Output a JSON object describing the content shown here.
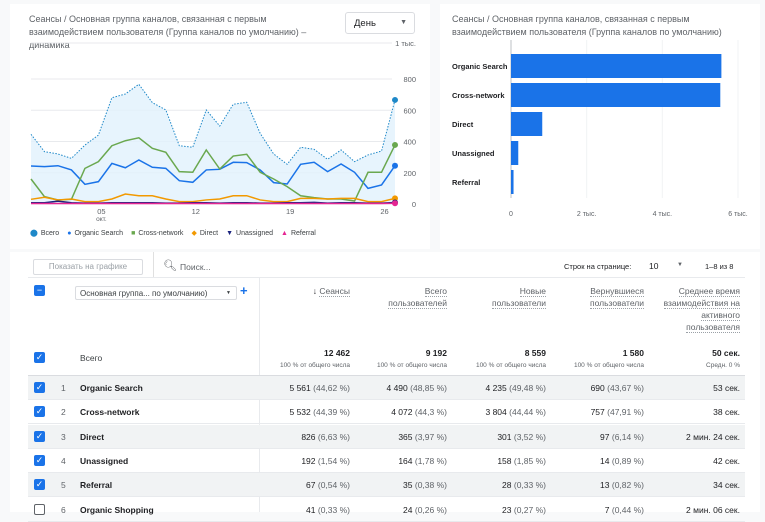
{
  "line_card": {
    "title": "Сеансы / Основная группа каналов, связанная с первым взаимодействием пользователя (Группа каналов по умолчанию) – динамика",
    "period": "День",
    "y_ticks": [
      "1 тыс.",
      "800",
      "600",
      "400",
      "200",
      "0"
    ],
    "x_ticks": [
      "05",
      "12",
      "19",
      "26"
    ],
    "x_sub": "окт.",
    "legend": [
      {
        "name": "Всего",
        "color": "#1e88c8",
        "icon": "pin-icon"
      },
      {
        "name": "Organic Search",
        "color": "#1a73e8",
        "icon": "circle-icon"
      },
      {
        "name": "Cross-network",
        "color": "#6aa84f",
        "icon": "square-icon"
      },
      {
        "name": "Direct",
        "color": "#f29900",
        "icon": "diamond-icon"
      },
      {
        "name": "Unassigned",
        "color": "#1a237e",
        "icon": "triangle-down-icon"
      },
      {
        "name": "Referral",
        "color": "#e52592",
        "icon": "triangle-icon"
      }
    ]
  },
  "chart_data": [
    {
      "type": "line",
      "title": "Сеансы – динамика",
      "x": [
        0,
        1,
        2,
        3,
        4,
        5,
        6,
        7,
        8,
        9,
        10,
        11,
        12,
        13,
        14,
        15,
        16,
        17,
        18,
        19,
        20,
        21,
        22,
        23,
        24,
        25,
        26,
        27
      ],
      "ylim": [
        0,
        1000
      ],
      "series": [
        {
          "name": "Всего",
          "values": [
            446,
            335,
            320,
            292,
            377,
            441,
            680,
            704,
            766,
            649,
            602,
            373,
            363,
            602,
            499,
            638,
            651,
            452,
            320,
            254,
            363,
            350,
            286,
            346,
            271,
            314,
            339,
            666
          ]
        },
        {
          "name": "Organic Search",
          "values": [
            243,
            239,
            245,
            218,
            126,
            143,
            260,
            232,
            282,
            235,
            228,
            149,
            139,
            218,
            222,
            267,
            265,
            218,
            137,
            128,
            254,
            267,
            207,
            256,
            203,
            100,
            122,
            245
          ]
        },
        {
          "name": "Cross-network",
          "values": [
            160,
            47,
            26,
            30,
            228,
            271,
            373,
            405,
            424,
            356,
            331,
            207,
            203,
            346,
            224,
            307,
            318,
            203,
            160,
            111,
            53,
            41,
            32,
            32,
            19,
            203,
            203,
            378
          ]
        },
        {
          "name": "Direct",
          "values": [
            30,
            43,
            26,
            32,
            15,
            15,
            32,
            64,
            53,
            53,
            32,
            15,
            15,
            26,
            32,
            53,
            53,
            26,
            15,
            15,
            36,
            36,
            32,
            36,
            36,
            15,
            15,
            36
          ]
        },
        {
          "name": "Unassigned",
          "values": [
            8,
            8,
            18,
            8,
            6,
            6,
            8,
            8,
            8,
            8,
            6,
            6,
            8,
            8,
            6,
            8,
            8,
            6,
            6,
            8,
            8,
            10,
            6,
            8,
            8,
            6,
            6,
            10
          ]
        },
        {
          "name": "Referral",
          "values": [
            3,
            3,
            3,
            3,
            3,
            3,
            3,
            3,
            3,
            3,
            3,
            3,
            3,
            3,
            3,
            3,
            3,
            3,
            3,
            3,
            3,
            3,
            3,
            3,
            3,
            3,
            3,
            5
          ]
        }
      ]
    },
    {
      "type": "bar",
      "title": "Сеансы / Основная группа каналов, связанная с первым взаимодействием пользователя (Группа каналов по умолчанию)",
      "categories": [
        "Organic Search",
        "Cross-network",
        "Direct",
        "Unassigned",
        "Referral"
      ],
      "values": [
        5561,
        5532,
        826,
        192,
        67
      ],
      "xlim": [
        0,
        6000
      ],
      "x_ticks": [
        "0",
        "2 тыс.",
        "4 тыс.",
        "6 тыс."
      ]
    }
  ],
  "toolbar": {
    "show_chart": "Показать на графике",
    "search_placeholder": "Поиск...",
    "rows_label": "Строк на странице:",
    "rows_value": "10",
    "range": "1–8 из 8"
  },
  "table": {
    "dimension": "Основная группа... по умолчанию)",
    "headers": [
      "Сеансы",
      "Всего пользователей",
      "Новые пользователи",
      "Вернувшиеся пользователи",
      "Среднее время взаимодействия на активного пользователя"
    ],
    "total": {
      "label": "Всего",
      "values": [
        "12 462",
        "9 192",
        "8 559",
        "1 580",
        "50 сек."
      ],
      "subs": [
        "100 % от общего числа",
        "100 % от общего числа",
        "100 % от общего числа",
        "100 % от общего числа",
        "Средн. 0 %"
      ]
    },
    "rows": [
      {
        "n": "1",
        "name": "Organic Search",
        "checked": true,
        "v": [
          "5 561",
          "4 490",
          "4 235",
          "690",
          "53 сек."
        ],
        "p": [
          "(44,62 %)",
          "(48,85 %)",
          "(49,48 %)",
          "(43,67 %)",
          ""
        ]
      },
      {
        "n": "2",
        "name": "Cross-network",
        "checked": true,
        "v": [
          "5 532",
          "4 072",
          "3 804",
          "757",
          "38 сек."
        ],
        "p": [
          "(44,39 %)",
          "(44,3 %)",
          "(44,44 %)",
          "(47,91 %)",
          ""
        ]
      },
      {
        "n": "3",
        "name": "Direct",
        "checked": true,
        "v": [
          "826",
          "365",
          "301",
          "97",
          "2 мин. 24 сек."
        ],
        "p": [
          "(6,63 %)",
          "(3,97 %)",
          "(3,52 %)",
          "(6,14 %)",
          ""
        ]
      },
      {
        "n": "4",
        "name": "Unassigned",
        "checked": true,
        "v": [
          "192",
          "164",
          "158",
          "14",
          "42 сек."
        ],
        "p": [
          "(1,54 %)",
          "(1,78 %)",
          "(1,85 %)",
          "(0,89 %)",
          ""
        ]
      },
      {
        "n": "5",
        "name": "Referral",
        "checked": true,
        "v": [
          "67",
          "35",
          "28",
          "13",
          "34 сек."
        ],
        "p": [
          "(0,54 %)",
          "(0,38 %)",
          "(0,33 %)",
          "(0,82 %)",
          ""
        ]
      },
      {
        "n": "6",
        "name": "Organic Shopping",
        "checked": false,
        "v": [
          "41",
          "24",
          "23",
          "7",
          "2 мин. 06 сек."
        ],
        "p": [
          "(0,33 %)",
          "(0,26 %)",
          "(0,27 %)",
          "(0,44 %)",
          ""
        ]
      }
    ]
  }
}
